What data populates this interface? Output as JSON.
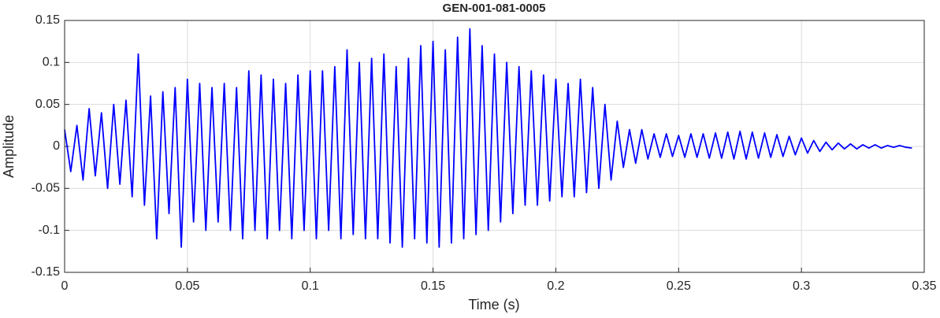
{
  "chart_data": {
    "type": "line",
    "title": "GEN-001-081-0005",
    "xlabel": "Time (s)",
    "ylabel": "Amplitude",
    "x": [
      0,
      0.0025,
      0.005,
      0.0075,
      0.01,
      0.0125,
      0.015,
      0.0175,
      0.02,
      0.0225,
      0.025,
      0.0275,
      0.03,
      0.0325,
      0.035,
      0.0375,
      0.04,
      0.0425,
      0.045,
      0.0475,
      0.05,
      0.0525,
      0.055,
      0.0575,
      0.06,
      0.0625,
      0.065,
      0.0675,
      0.07,
      0.0725,
      0.075,
      0.0775,
      0.08,
      0.0825,
      0.085,
      0.0875,
      0.09,
      0.0925,
      0.095,
      0.0975,
      0.1,
      0.1025,
      0.105,
      0.1075,
      0.11,
      0.1125,
      0.115,
      0.1175,
      0.12,
      0.1225,
      0.125,
      0.1275,
      0.13,
      0.1325,
      0.135,
      0.1375,
      0.14,
      0.1425,
      0.145,
      0.1475,
      0.15,
      0.1525,
      0.155,
      0.1575,
      0.16,
      0.1625,
      0.165,
      0.1675,
      0.17,
      0.1725,
      0.175,
      0.1775,
      0.18,
      0.1825,
      0.185,
      0.1875,
      0.19,
      0.1925,
      0.195,
      0.1975,
      0.2,
      0.2025,
      0.205,
      0.2075,
      0.21,
      0.2125,
      0.215,
      0.2175,
      0.22,
      0.2225,
      0.225,
      0.2275,
      0.23,
      0.2325,
      0.235,
      0.2375,
      0.24,
      0.2425,
      0.245,
      0.2475,
      0.25,
      0.2525,
      0.255,
      0.2575,
      0.26,
      0.2625,
      0.265,
      0.2675,
      0.27,
      0.2725,
      0.275,
      0.2775,
      0.28,
      0.2825,
      0.285,
      0.2875,
      0.29,
      0.2925,
      0.295,
      0.2975,
      0.3,
      0.3025,
      0.305,
      0.3075,
      0.31,
      0.3125,
      0.315,
      0.3175,
      0.32,
      0.3225,
      0.325,
      0.3275,
      0.33,
      0.3325,
      0.335,
      0.3375,
      0.34,
      0.3425,
      0.345
    ],
    "values": [
      0.02,
      -0.03,
      0.025,
      -0.04,
      0.045,
      -0.035,
      0.04,
      -0.05,
      0.05,
      -0.045,
      0.055,
      -0.06,
      0.11,
      -0.07,
      0.06,
      -0.11,
      0.065,
      -0.08,
      0.07,
      -0.12,
      0.08,
      -0.09,
      0.075,
      -0.1,
      0.07,
      -0.09,
      0.075,
      -0.1,
      0.07,
      -0.11,
      0.09,
      -0.1,
      0.085,
      -0.11,
      0.08,
      -0.1,
      0.075,
      -0.11,
      0.085,
      -0.1,
      0.09,
      -0.11,
      0.09,
      -0.1,
      0.095,
      -0.11,
      0.115,
      -0.105,
      0.1,
      -0.11,
      0.105,
      -0.11,
      0.11,
      -0.115,
      0.095,
      -0.12,
      0.105,
      -0.11,
      0.12,
      -0.115,
      0.125,
      -0.12,
      0.115,
      -0.115,
      0.13,
      -0.11,
      0.14,
      -0.105,
      0.12,
      -0.1,
      0.11,
      -0.09,
      0.1,
      -0.08,
      0.095,
      -0.07,
      0.09,
      -0.07,
      0.085,
      -0.065,
      0.08,
      -0.06,
      0.075,
      -0.06,
      0.08,
      -0.055,
      0.07,
      -0.05,
      0.05,
      -0.04,
      0.03,
      -0.025,
      0.02,
      -0.02,
      0.02,
      -0.015,
      0.015,
      -0.013,
      0.015,
      -0.012,
      0.013,
      -0.013,
      0.015,
      -0.013,
      0.015,
      -0.014,
      0.016,
      -0.014,
      0.017,
      -0.015,
      0.018,
      -0.015,
      0.017,
      -0.014,
      0.016,
      -0.013,
      0.014,
      -0.012,
      0.012,
      -0.01,
      0.01,
      -0.008,
      0.007,
      -0.006,
      0.005,
      -0.004,
      0.004,
      -0.003,
      0.003,
      -0.003,
      0.002,
      -0.002,
      0.002,
      -0.002,
      0.001,
      -0.001,
      0.001,
      -0.001,
      -0.002
    ],
    "color": "#0000ff",
    "xlim": [
      0,
      0.35
    ],
    "xticks": [
      0,
      0.05,
      0.1,
      0.15,
      0.2,
      0.25,
      0.3,
      0.35
    ],
    "ylim": [
      -0.15,
      0.15
    ],
    "yticks": [
      -0.15,
      -0.1,
      -0.05,
      0,
      0.05,
      0.1,
      0.15
    ],
    "grid": true
  }
}
